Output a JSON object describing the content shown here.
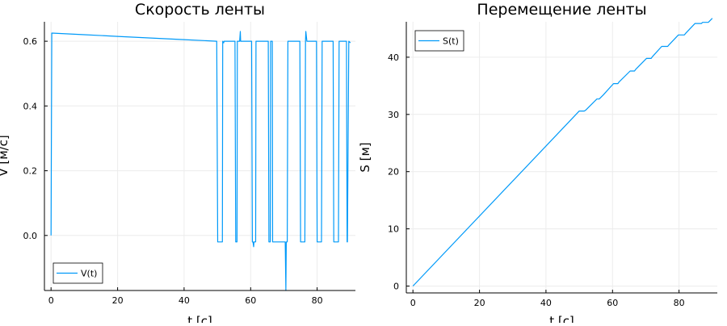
{
  "colors": {
    "series": "#009af9",
    "grid": "#ececec",
    "axis": "#000000",
    "background": "#ffffff"
  },
  "chart_data": [
    {
      "type": "line",
      "title": "Скорость ленты",
      "xlabel": "t [c]",
      "ylabel": "V [м/c]",
      "xlim": [
        -2,
        91.5
      ],
      "ylim": [
        -0.17,
        0.66
      ],
      "xticks": [
        0,
        20,
        40,
        60,
        80
      ],
      "yticks": [
        0.0,
        0.2,
        0.4,
        0.6
      ],
      "ytick_labels": [
        "0.0",
        "0.2",
        "0.4",
        "0.6"
      ],
      "grid": true,
      "legend_position": "bottom-left",
      "series": [
        {
          "name": "V(t)",
          "x": [
            0,
            0.2,
            10,
            20,
            30,
            40,
            49.8,
            50.1,
            51.2,
            51.5,
            51.6,
            51.9,
            52.0,
            55.3,
            55.5,
            55.6,
            55.9,
            56.0,
            56.7,
            56.9,
            57.0,
            57.2,
            60.3,
            60.5,
            60.7,
            60.9,
            61.0,
            61.3,
            61.5,
            61.6,
            61.9,
            62.0,
            65.3,
            65.5,
            65.6,
            65.9,
            66.0,
            66.3,
            66.5,
            66.6,
            66.9,
            67.0,
            70.2,
            70.4,
            70.6,
            70.7,
            70.8,
            71.0,
            71.2,
            71.3,
            71.5,
            71.6,
            74.8,
            75.0,
            75.1,
            75.4,
            75.5,
            76.3,
            76.5,
            76.6,
            76.9,
            77.0,
            77.3,
            77.6,
            77.7,
            79.8,
            80.0,
            80.1,
            80.4,
            80.5,
            81.3,
            81.5,
            81.6,
            81.9,
            82.0,
            84.8,
            85.0,
            85.1,
            85.4,
            85.5,
            86.4,
            86.6,
            86.7,
            87.0,
            87.1,
            88.8,
            89.0,
            89.1,
            89.5,
            90.0
          ],
          "y": [
            0.0,
            0.625,
            0.62,
            0.615,
            0.61,
            0.605,
            0.6,
            -0.02,
            -0.02,
            -0.02,
            0.6,
            0.595,
            0.6,
            0.6,
            -0.02,
            -0.02,
            -0.02,
            0.6,
            0.6,
            0.63,
            0.6,
            0.6,
            0.6,
            -0.02,
            -0.02,
            -0.035,
            -0.02,
            -0.02,
            -0.02,
            0.6,
            0.6,
            0.6,
            0.6,
            -0.02,
            -0.02,
            -0.02,
            0.6,
            0.6,
            0.6,
            -0.02,
            -0.02,
            -0.02,
            -0.02,
            -0.02,
            -0.17,
            -0.02,
            -0.02,
            -0.02,
            0.6,
            0.6,
            0.6,
            0.6,
            0.6,
            -0.02,
            -0.02,
            -0.02,
            -0.02,
            -0.02,
            0.6,
            0.63,
            0.6,
            0.6,
            0.6,
            0.6,
            0.6,
            0.6,
            -0.02,
            -0.02,
            -0.02,
            -0.02,
            -0.02,
            0.6,
            0.6,
            0.6,
            0.6,
            0.6,
            -0.02,
            -0.02,
            -0.02,
            -0.02,
            -0.02,
            0.6,
            0.6,
            0.6,
            0.6,
            0.6,
            -0.02,
            -0.02,
            0.6,
            0.595
          ]
        }
      ]
    },
    {
      "type": "line",
      "title": "Перемещение ленты",
      "xlabel": "t [c]",
      "ylabel": "S [м]",
      "xlim": [
        -2,
        91.5
      ],
      "ylim": [
        -1.2,
        46.2
      ],
      "xticks": [
        0,
        20,
        40,
        60,
        80
      ],
      "yticks": [
        0,
        10,
        20,
        30,
        40
      ],
      "ytick_labels": [
        "0",
        "10",
        "20",
        "30",
        "40"
      ],
      "grid": true,
      "legend_position": "top-left",
      "series": [
        {
          "name": "S(t)",
          "x": [
            0,
            50.0,
            51.5,
            52.0,
            55.3,
            56.0,
            57.2,
            60.3,
            61.6,
            62.0,
            65.3,
            66.6,
            67.0,
            70.2,
            71.6,
            72.0,
            74.8,
            76.6,
            77.0,
            79.8,
            81.6,
            82.0,
            84.8,
            86.7,
            87.1,
            88.8,
            90.0
          ],
          "y": [
            0,
            30.6,
            30.6,
            30.8,
            32.7,
            32.7,
            33.4,
            35.4,
            35.4,
            35.7,
            37.6,
            37.6,
            37.9,
            39.8,
            39.8,
            40.1,
            41.9,
            41.9,
            42.2,
            43.9,
            43.9,
            44.2,
            45.9,
            45.9,
            46.1,
            46.1,
            46.8
          ]
        }
      ]
    }
  ]
}
